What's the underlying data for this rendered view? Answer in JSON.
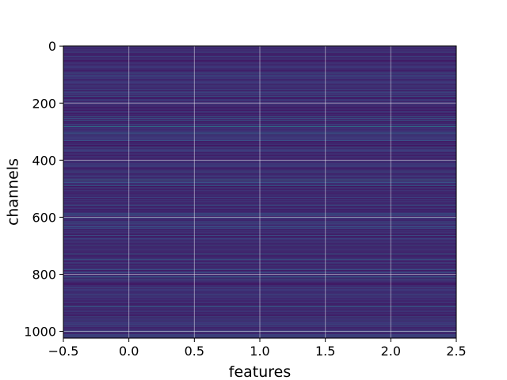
{
  "chart_data": {
    "type": "heatmap",
    "title": "",
    "xlabel": "features",
    "ylabel": "channels",
    "xlim": [
      -0.5,
      2.5
    ],
    "ylim": [
      1023.5,
      -0.5
    ],
    "x_ticks": [
      -0.5,
      0.0,
      0.5,
      1.0,
      1.5,
      2.0,
      2.5
    ],
    "x_tick_labels": [
      "−0.5",
      "0.0",
      "0.5",
      "1.0",
      "1.5",
      "2.0",
      "2.5"
    ],
    "y_ticks": [
      0,
      200,
      400,
      600,
      800,
      1000
    ],
    "y_tick_labels": [
      "0",
      "200",
      "400",
      "600",
      "800",
      "1000"
    ],
    "grid": true,
    "colormap": "viridis",
    "n_rows": 1024,
    "n_cols": 3,
    "row_values_note_free": true,
    "bright_rows": [
      {
        "row": 95,
        "value": 0.38
      },
      {
        "row": 248,
        "value": 0.42
      },
      {
        "row": 282,
        "value": 0.5
      },
      {
        "row": 470,
        "value": 0.55
      },
      {
        "row": 593,
        "value": 0.36
      },
      {
        "row": 748,
        "value": 0.4
      },
      {
        "row": 810,
        "value": 0.38
      },
      {
        "row": 912,
        "value": 0.42
      },
      {
        "row": 1000,
        "value": 0.37
      }
    ],
    "base_value_range": [
      0.05,
      0.2
    ]
  }
}
